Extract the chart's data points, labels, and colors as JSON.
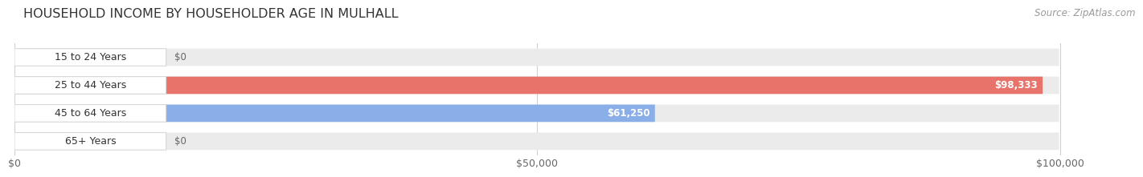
{
  "title": "HOUSEHOLD INCOME BY HOUSEHOLDER AGE IN MULHALL",
  "source": "Source: ZipAtlas.com",
  "categories": [
    "15 to 24 Years",
    "25 to 44 Years",
    "45 to 64 Years",
    "65+ Years"
  ],
  "values": [
    0,
    98333,
    61250,
    0
  ],
  "bar_colors": [
    "#f5c690",
    "#e8736a",
    "#8aaee8",
    "#c4a8d4"
  ],
  "bar_bg_color": "#ebebeb",
  "value_labels": [
    "$0",
    "$98,333",
    "$61,250",
    "$0"
  ],
  "x_ticks": [
    0,
    50000,
    100000
  ],
  "x_tick_labels": [
    "$0",
    "$50,000",
    "$100,000"
  ],
  "xmax": 100000,
  "xlim_max": 107000,
  "title_fontsize": 11.5,
  "source_fontsize": 8.5,
  "tick_fontsize": 9,
  "bar_label_fontsize": 8.5,
  "cat_label_fontsize": 9,
  "background_color": "#ffffff",
  "grid_color": "#d0d0d0",
  "text_color": "#333333",
  "tick_color": "#666666"
}
